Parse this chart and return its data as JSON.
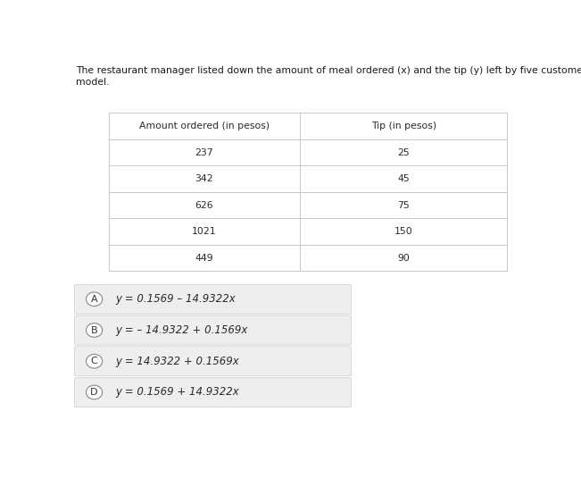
{
  "title_line1": "The restaurant manager listed down the amount of meal ordered (x) and the tip (y) left by five customers. Determine the regression",
  "title_line2": "model.",
  "col1_header": "Amount ordered (in pesos)",
  "col2_header": "Tip (in pesos)",
  "col1_data": [
    "237",
    "342",
    "626",
    "1021",
    "449"
  ],
  "col2_data": [
    "25",
    "45",
    "75",
    "150",
    "90"
  ],
  "options": [
    {
      "label": "A",
      "text": "y = 0.1569 – 14.9322x"
    },
    {
      "label": "B",
      "text": "y = – 14.9322 + 0.1569x"
    },
    {
      "label": "C",
      "text": "y = 14.9322 + 0.1569x"
    },
    {
      "label": "D",
      "text": "y = 0.1569 + 14.9322x"
    }
  ],
  "bg_color": "#ffffff",
  "table_border_color": "#c8c8c8",
  "option_bg_color": "#eeeeee",
  "option_border_color": "#cccccc",
  "title_fontsize": 7.8,
  "table_header_fontsize": 7.8,
  "table_data_fontsize": 7.8,
  "option_fontsize": 8.5,
  "label_fontsize": 8.0
}
